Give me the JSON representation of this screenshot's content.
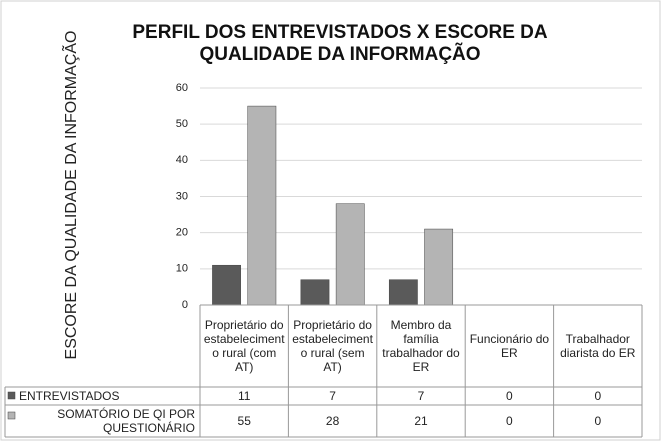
{
  "chart_data": {
    "type": "bar",
    "title": "PERFIL DOS ENTREVISTADOS X ESCORE DA QUALIDADE DA INFORMAÇÃO",
    "y_label": "ESCORE DA QUALIDADE DA INFORMAÇÃO",
    "categories": [
      "Proprietário do estabelecimento rural (com AT)",
      "Proprietário do estabelecimento rural (sem AT)",
      "Membro da família trabalhador do ER",
      "Funcionário do ER",
      "Trabalhador diarista do ER"
    ],
    "series": [
      {
        "name": "ENTREVISTADOS",
        "color": "#5a5a5a",
        "values": [
          11,
          7,
          7,
          0,
          0
        ]
      },
      {
        "name": "SOMATÓRIO DE QI POR QUESTIONÁRIO",
        "color": "#b4b4b4",
        "values": [
          55,
          28,
          21,
          0,
          0
        ]
      }
    ],
    "ylim": [
      0,
      60
    ],
    "yticks": [
      0,
      10,
      20,
      30,
      40,
      50,
      60
    ],
    "grid": true,
    "data_table": true
  }
}
